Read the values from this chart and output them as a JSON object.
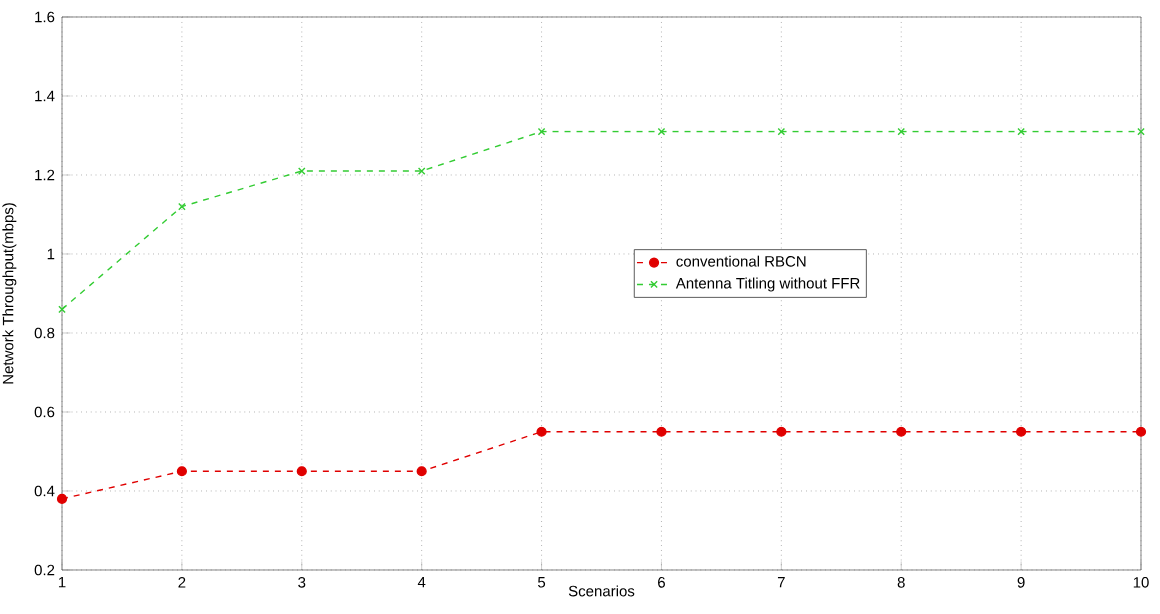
{
  "chart_data": {
    "type": "line",
    "xlabel": "Scenarios",
    "ylabel": "Network Throughput(mbps)",
    "x": [
      1,
      2,
      3,
      4,
      5,
      6,
      7,
      8,
      9,
      10
    ],
    "series": [
      {
        "name": "conventional RBCN",
        "color": "#e00000",
        "marker": "circle",
        "line_style": "dashed",
        "values": [
          0.38,
          0.45,
          0.45,
          0.45,
          0.55,
          0.55,
          0.55,
          0.55,
          0.55,
          0.55
        ]
      },
      {
        "name": "Antenna Titling without FFR",
        "color": "#33cc33",
        "marker": "cross",
        "line_style": "dashed",
        "values": [
          0.86,
          1.12,
          1.21,
          1.21,
          1.31,
          1.31,
          1.31,
          1.31,
          1.31,
          1.31
        ]
      }
    ],
    "xlim": [
      1,
      10
    ],
    "ylim": [
      0.2,
      1.6
    ],
    "xticks": [
      1,
      2,
      3,
      4,
      5,
      6,
      7,
      8,
      9,
      10
    ],
    "yticks": [
      0.2,
      0.4,
      0.6,
      0.8,
      1,
      1.2,
      1.4,
      1.6
    ],
    "grid": true,
    "legend": "right"
  }
}
